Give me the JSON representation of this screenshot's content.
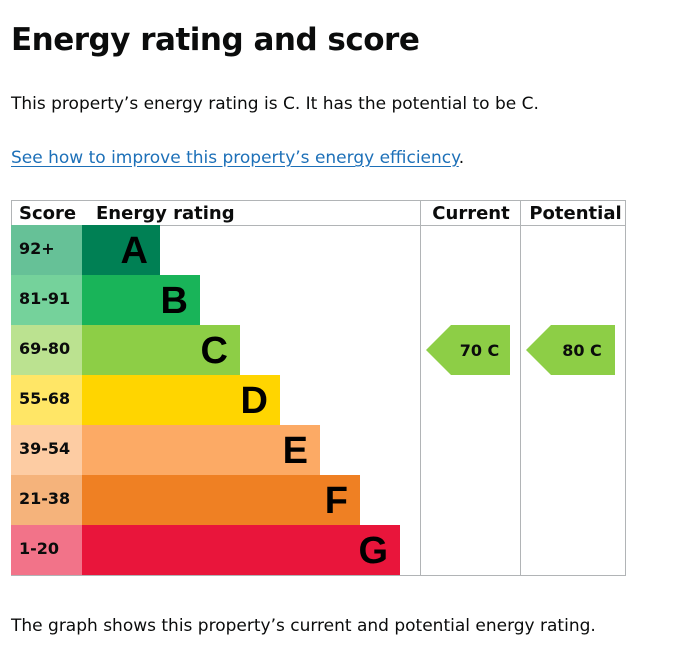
{
  "page": {
    "title": "Energy rating and score",
    "summary": "This property’s energy rating is C. It has the potential to be C.",
    "improve_link": "See how to improve this property’s energy efficiency",
    "improve_suffix": ".",
    "footer": "The graph shows this property’s current and potential energy rating."
  },
  "chart_data": {
    "type": "bar",
    "headers": {
      "score": "Score",
      "rating": "Energy rating",
      "current": "Current",
      "potential": "Potential"
    },
    "bands": [
      {
        "letter": "A",
        "range": "92+",
        "color": "#008054",
        "range_color": "#66c197"
      },
      {
        "letter": "B",
        "range": "81-91",
        "color": "#19b459",
        "range_color": "#75d29b"
      },
      {
        "letter": "C",
        "range": "69-80",
        "color": "#8dce46",
        "range_color": "#bbe290"
      },
      {
        "letter": "D",
        "range": "55-68",
        "color": "#ffd500",
        "range_color": "#ffe666"
      },
      {
        "letter": "E",
        "range": "39-54",
        "color": "#fcaa65",
        "range_color": "#fdcca3"
      },
      {
        "letter": "F",
        "range": "21-38",
        "color": "#ef8023",
        "range_color": "#f5b37b"
      },
      {
        "letter": "G",
        "range": "1-20",
        "color": "#e9153b",
        "range_color": "#f27389"
      }
    ],
    "current": {
      "score": 70,
      "letter": "C",
      "label": "70  C"
    },
    "potential": {
      "score": 80,
      "letter": "C",
      "label": "80  C"
    }
  }
}
